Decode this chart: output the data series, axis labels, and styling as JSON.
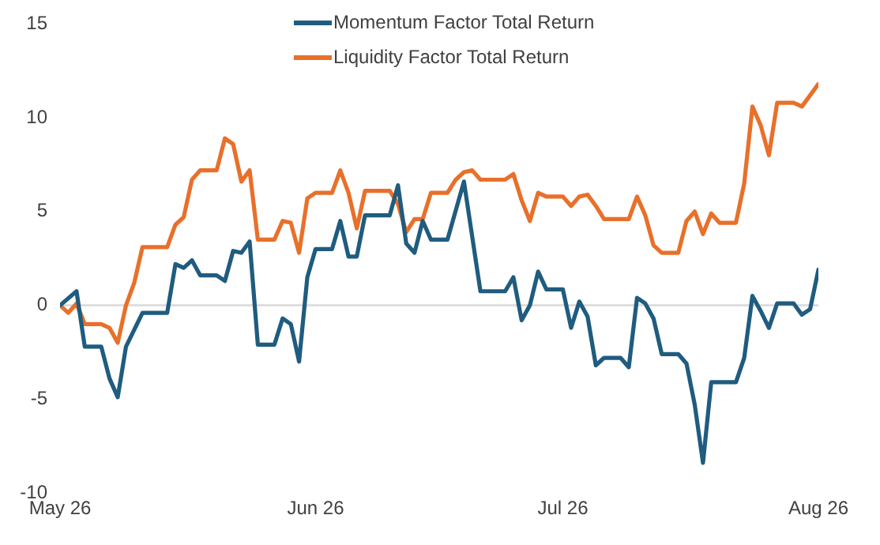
{
  "chart_data": {
    "type": "line",
    "legend": "top",
    "grid": false,
    "marker": "none",
    "line_style": "solid",
    "xlim": [
      "--05-26",
      "--08-26"
    ],
    "xticks": [
      {
        "value": "--05-26",
        "label": "May 26"
      },
      {
        "value": "--06-26",
        "label": "Jun 26"
      },
      {
        "value": "--07-26",
        "label": "Jul 26"
      },
      {
        "value": "--08-26",
        "label": "Aug 26"
      }
    ],
    "ylim": [
      -10,
      15
    ],
    "yticks": [
      -10,
      -5,
      0,
      5,
      10,
      15
    ],
    "ref_lines": [
      {
        "axis": "y",
        "value": 0,
        "color": "#d9d9d9"
      }
    ],
    "series": [
      {
        "name": "Momentum Factor Total Return",
        "color": "#1f5c7f",
        "x": [
          "--05-26",
          "--05-28",
          "--05-29",
          "--05-31",
          "--06-01",
          "--06-02",
          "--06-03",
          "--06-05",
          "--06-08",
          "--06-09",
          "--06-10",
          "--06-11",
          "--06-12",
          "--06-14",
          "--06-15",
          "--06-16",
          "--06-17",
          "--06-18",
          "--06-19",
          "--06-21",
          "--06-22",
          "--06-23",
          "--06-24",
          "--06-25",
          "--06-26",
          "--06-28",
          "--06-29",
          "--06-30",
          "--07-01",
          "--07-02",
          "--07-05",
          "--07-06",
          "--07-07",
          "--07-08",
          "--07-09",
          "--07-10",
          "--07-12",
          "--07-14",
          "--07-16",
          "--07-19",
          "--07-20",
          "--07-21",
          "--07-22",
          "--07-23",
          "--07-24",
          "--07-26",
          "--07-27",
          "--07-28",
          "--07-29",
          "--07-30",
          "--07-31",
          "--08-02",
          "--08-03",
          "--08-04",
          "--08-05",
          "--08-06",
          "--08-07",
          "--08-09",
          "--08-10",
          "--08-11",
          "--08-12",
          "--08-13",
          "--08-16",
          "--08-17",
          "--08-18",
          "--08-19",
          "--08-20",
          "--08-21",
          "--08-23",
          "--08-24",
          "--08-25",
          "--08-26"
        ],
        "values": [
          0,
          0.75,
          -2.2,
          -2.2,
          -3.9,
          -4.9,
          -2.2,
          -0.4,
          -0.4,
          2.2,
          2.0,
          2.4,
          1.6,
          1.6,
          1.3,
          2.9,
          2.8,
          3.4,
          -2.1,
          -2.1,
          -0.7,
          -1.0,
          -3.0,
          1.5,
          3.0,
          3.0,
          4.5,
          2.6,
          2.6,
          4.8,
          4.8,
          6.4,
          3.3,
          2.8,
          4.5,
          3.5,
          3.5,
          6.6,
          0.75,
          0.75,
          1.5,
          -0.8,
          0,
          1.8,
          0.85,
          0.85,
          -1.2,
          0.2,
          -0.6,
          -3.2,
          -2.8,
          -2.8,
          -3.3,
          0.4,
          0.1,
          -0.7,
          -2.6,
          -2.6,
          -3.1,
          -5.3,
          -8.4,
          -4.1,
          -4.1,
          -2.8,
          0.5,
          -0.3,
          -1.2,
          0.1,
          0.1,
          -0.5,
          -0.2,
          1.9
        ]
      },
      {
        "name": "Liquidity Factor Total Return",
        "color": "#e8702a",
        "x": [
          "--05-26",
          "--05-27",
          "--05-28",
          "--05-29",
          "--05-31",
          "--06-01",
          "--06-02",
          "--06-03",
          "--06-04",
          "--06-05",
          "--06-08",
          "--06-09",
          "--06-10",
          "--06-11",
          "--06-12",
          "--06-14",
          "--06-15",
          "--06-16",
          "--06-17",
          "--06-18",
          "--06-19",
          "--06-21",
          "--06-22",
          "--06-23",
          "--06-24",
          "--06-25",
          "--06-26",
          "--06-28",
          "--06-29",
          "--06-30",
          "--07-01",
          "--07-02",
          "--07-05",
          "--07-06",
          "--07-07",
          "--07-08",
          "--07-09",
          "--07-10",
          "--07-12",
          "--07-13",
          "--07-14",
          "--07-15",
          "--07-16",
          "--07-19",
          "--07-20",
          "--07-21",
          "--07-22",
          "--07-23",
          "--07-24",
          "--07-26",
          "--07-27",
          "--07-28",
          "--07-29",
          "--07-30",
          "--07-31",
          "--08-03",
          "--08-04",
          "--08-05",
          "--08-06",
          "--08-07",
          "--08-09",
          "--08-10",
          "--08-11",
          "--08-12",
          "--08-13",
          "--08-14",
          "--08-16",
          "--08-17",
          "--08-18",
          "--08-19",
          "--08-20",
          "--08-21",
          "--08-23",
          "--08-24",
          "--08-26"
        ],
        "values": [
          0,
          -0.4,
          0.1,
          -1.0,
          -1.0,
          -1.2,
          -2.0,
          0,
          1.2,
          3.1,
          3.1,
          4.3,
          4.7,
          6.7,
          7.2,
          7.2,
          8.9,
          8.6,
          6.6,
          7.2,
          3.5,
          3.5,
          4.5,
          4.4,
          2.8,
          5.7,
          6.0,
          6.0,
          7.2,
          6.0,
          4.1,
          6.1,
          6.1,
          5.4,
          3.9,
          4.6,
          4.6,
          6.0,
          6.0,
          6.7,
          7.1,
          7.2,
          6.7,
          6.7,
          7.0,
          5.6,
          4.5,
          6.0,
          5.8,
          5.8,
          5.3,
          5.8,
          5.9,
          5.3,
          4.6,
          4.6,
          5.8,
          4.8,
          3.2,
          2.8,
          2.8,
          4.5,
          5.0,
          3.8,
          4.9,
          4.4,
          4.4,
          6.5,
          10.6,
          9.6,
          8.0,
          10.8,
          10.8,
          10.6,
          11.8
        ]
      }
    ]
  }
}
